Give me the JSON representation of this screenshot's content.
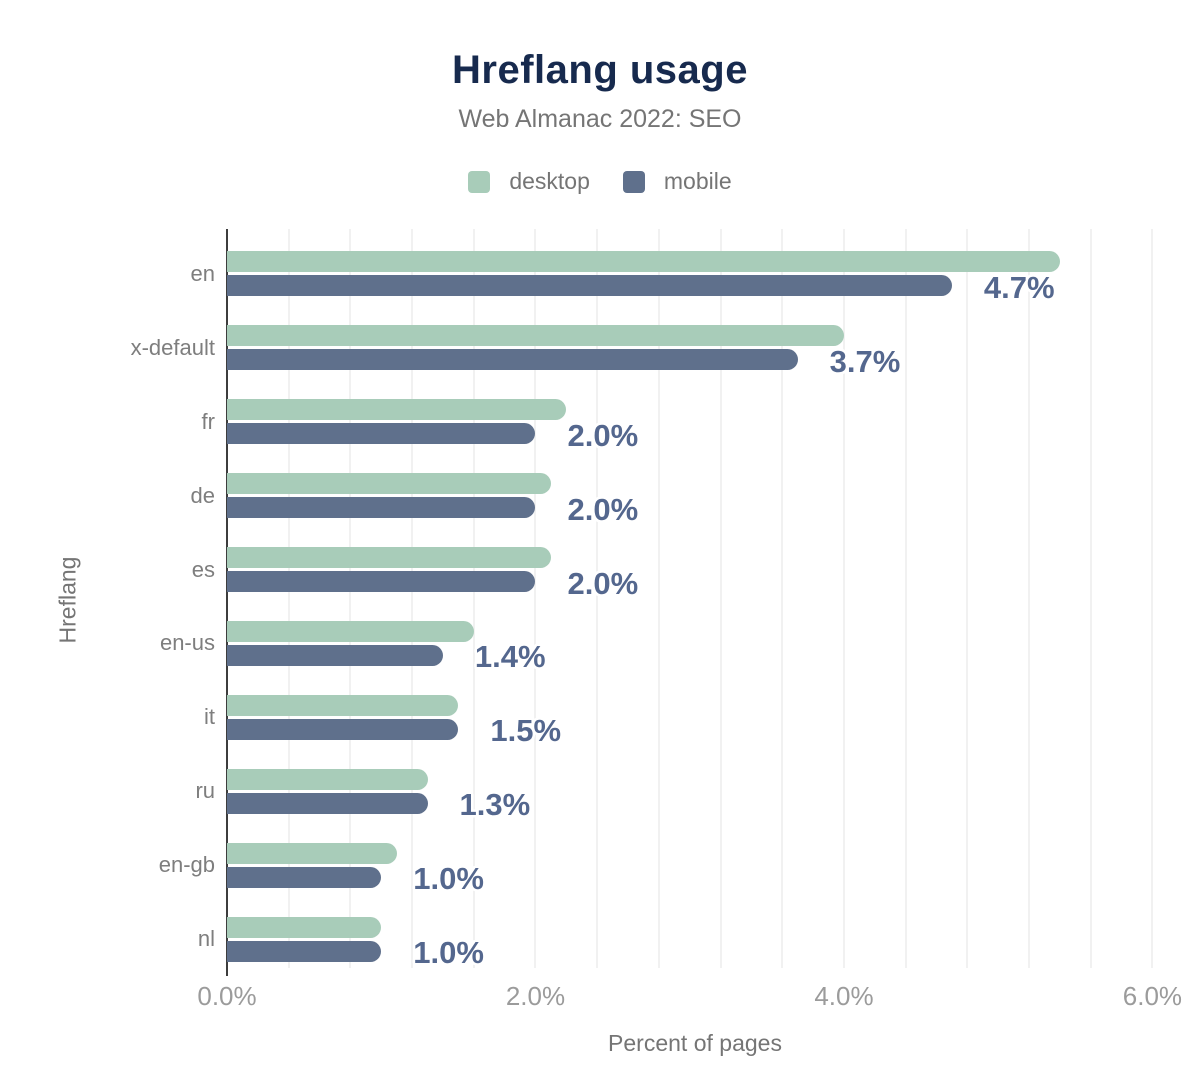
{
  "header": {
    "title": "Hreflang usage",
    "subtitle": "Web Almanac 2022: SEO"
  },
  "legend": {
    "items": [
      {
        "label": "desktop",
        "color": "#a8ccb9"
      },
      {
        "label": "mobile",
        "color": "#5f708c"
      }
    ]
  },
  "axes": {
    "x_title": "Percent of pages",
    "y_title": "Hreflang"
  },
  "colors": {
    "title": "#172a4e",
    "subtitle": "#757575",
    "axis_title": "#757575",
    "tick_label": "#9b9b9b",
    "category_label": "#7e7e7e",
    "value_label": "#54678e",
    "desktop_bar": "#a8ccb9",
    "mobile_bar": "#5f708c",
    "gridline": "#f1f1f1",
    "axis_line": "#3d3d3d"
  },
  "chart_data": {
    "type": "bar",
    "orientation": "horizontal",
    "title": "Hreflang usage",
    "subtitle": "Web Almanac 2022: SEO",
    "categories": [
      "en",
      "x-default",
      "fr",
      "de",
      "es",
      "en-us",
      "it",
      "ru",
      "en-gb",
      "nl"
    ],
    "series": [
      {
        "name": "desktop",
        "values": [
          5.4,
          4.0,
          2.2,
          2.1,
          2.1,
          1.6,
          1.5,
          1.3,
          1.1,
          1.0
        ]
      },
      {
        "name": "mobile",
        "values": [
          4.7,
          3.7,
          2.0,
          2.0,
          2.0,
          1.4,
          1.5,
          1.3,
          1.0,
          1.0
        ]
      }
    ],
    "bar_labels": [
      "4.7%",
      "3.7%",
      "2.0%",
      "2.0%",
      "2.0%",
      "1.4%",
      "1.5%",
      "1.3%",
      "1.0%",
      "1.0%"
    ],
    "bar_label_series": "mobile",
    "xlabel": "Percent of pages",
    "ylabel": "Hreflang",
    "xlim": [
      0,
      6.075
    ],
    "x_ticks": [
      {
        "label": "0.0%",
        "value": 0
      },
      {
        "label": "2.0%",
        "value": 2
      },
      {
        "label": "4.0%",
        "value": 4
      },
      {
        "label": "6.0%",
        "value": 6
      }
    ],
    "gridline_step": 0.4,
    "gridline_max": 6.0,
    "grid": true,
    "legend_position": "top"
  }
}
